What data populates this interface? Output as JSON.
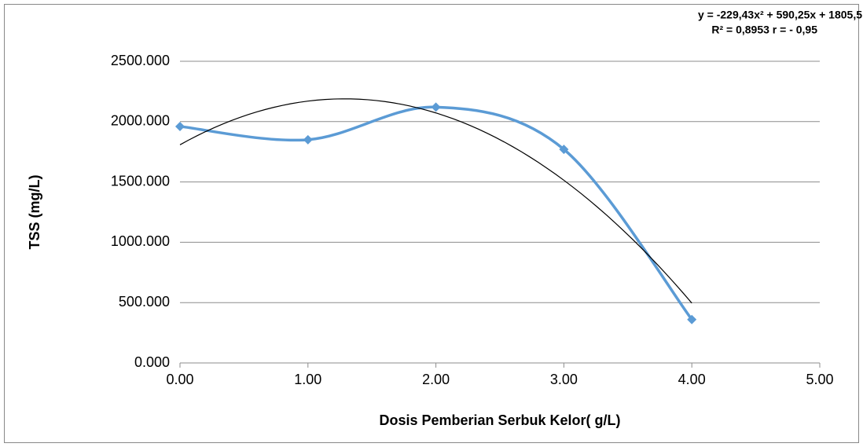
{
  "chart_data": {
    "type": "scatter",
    "x_label": "Dosis Pemberian Serbuk Kelor( g/L)",
    "y_label": "TSS (mg/L)",
    "annotations": [
      "y = -229,43x² + 590,25x + 1805,5",
      "R² = 0,8953 r = - 0,95"
    ],
    "series": [
      {
        "name": "TSS",
        "color": "#5b9bd5",
        "x": [
          0,
          1,
          2,
          3,
          4
        ],
        "values": [
          1960,
          1850,
          2120,
          1770,
          360
        ]
      }
    ],
    "trendline": "polynomial",
    "xlim": [
      0,
      5
    ],
    "xticks": [
      {
        "value": 0,
        "label": "0.00"
      },
      {
        "value": 1,
        "label": "1.00"
      },
      {
        "value": 2,
        "label": "2.00"
      },
      {
        "value": 3,
        "label": "3.00"
      },
      {
        "value": 4,
        "label": "4.00"
      },
      {
        "value": 5,
        "label": "5.00"
      }
    ],
    "ylim": [
      0,
      2500
    ],
    "yticks": [
      {
        "value": 0,
        "label": "0.000"
      },
      {
        "value": 500,
        "label": "500.000"
      },
      {
        "value": 1000,
        "label": "1000.000"
      },
      {
        "value": 1500,
        "label": "1500.000"
      },
      {
        "value": 2000,
        "label": "2000.000"
      },
      {
        "value": 2500,
        "label": "2500.000"
      }
    ],
    "grid": true
  }
}
